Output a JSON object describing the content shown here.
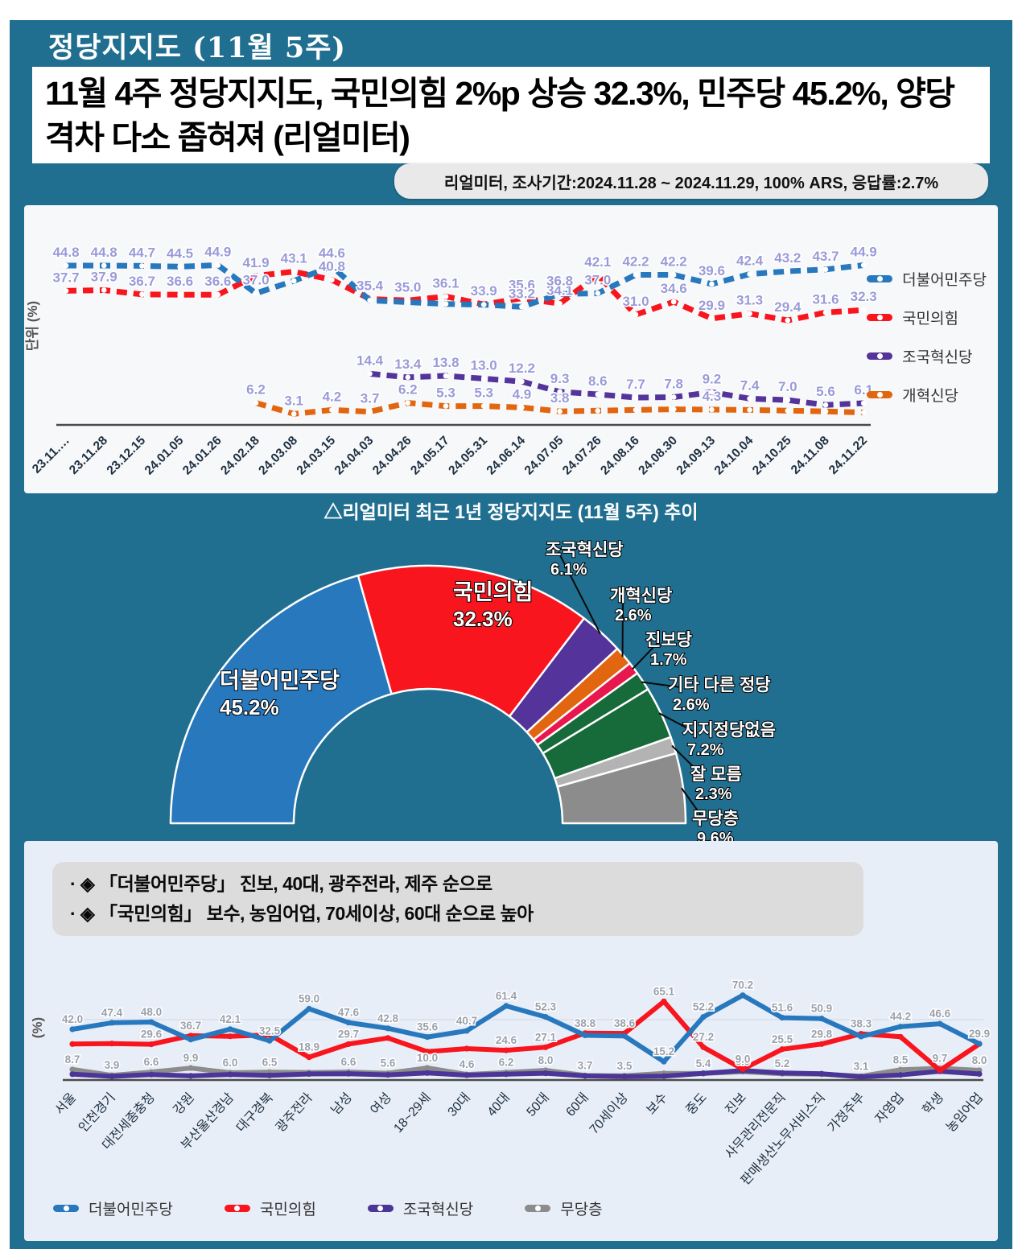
{
  "header": {
    "title": "정당지지도 (11월 5주)"
  },
  "headline": {
    "text": "11월 4주 정당지지도, 국민의힘 2%p 상승 32.3%, 민주당 45.2%, 양당 격차 다소 좁혀져 (리얼미터)"
  },
  "survey_note": {
    "text": "리얼미터, 조사기간:2024.11.28 ~ 2024.11.29, 100% ARS, 응답률:2.7%"
  },
  "trend_caption": {
    "text": "△리얼미터 최근 1년 정당지지도 (11월 5주) 추이"
  },
  "highlights": {
    "items": [
      "· ◈ 「더불어민주당」 진보, 40대, 광주전라, 제주 순으로",
      "· ◈ 「국민의힘」 보수, 농임어업, 70세이상, 60대 순으로 높아"
    ]
  },
  "colors": {
    "background_teal": "#216f90",
    "democratic_blue": "#2878be",
    "ppp_red": "#f8151d",
    "rebuilding_purple": "#54339b",
    "reform_orange": "#e2660f",
    "jinbo_crimson": "#e8174e",
    "other_green": "#176a3a",
    "dontknow_lightgray": "#b3b3b3",
    "none_gray": "#8c8c8c"
  },
  "chart_data": [
    {
      "id": "trend",
      "type": "line",
      "title": "리얼미터 최근 1년 정당지지도 추이",
      "ylabel": "단위 (%)",
      "ylim": [
        0,
        55
      ],
      "grid": false,
      "legend_position": "right",
      "x": [
        "23.11.…",
        "23.11.28",
        "23.12.15",
        "24.01.05",
        "24.01.26",
        "24.02.18",
        "24.03.08",
        "24.03.15",
        "24.04.03",
        "24.04.26",
        "24.05.17",
        "24.05.31",
        "24.06.14",
        "24.07.05",
        "24.07.26",
        "24.08.16",
        "24.08.30",
        "24.09.13",
        "24.10.04",
        "24.10.25",
        "24.11.08",
        "24.11.22"
      ],
      "series": [
        {
          "name": "더불어민주당",
          "color": "#2878be",
          "values": [
            44.8,
            44.8,
            44.7,
            44.5,
            44.9,
            37.0,
            40.5,
            44.6,
            35.0,
            34.5,
            34.0,
            33.8,
            33.2,
            36.8,
            37.0,
            42.2,
            42.2,
            39.6,
            42.4,
            43.2,
            43.7,
            44.9
          ],
          "labels": [
            "44.8",
            "44.8",
            "44.7",
            "44.5",
            "44.9",
            "37.0",
            "",
            "44.6",
            "",
            "",
            "",
            "",
            "33.2",
            "36.8",
            "37.0",
            "42.2",
            "42.2",
            "39.6",
            "42.4",
            "43.2",
            "43.7",
            "44.9"
          ]
        },
        {
          "name": "국민의힘",
          "color": "#f8151d",
          "values": [
            37.7,
            37.9,
            36.7,
            36.6,
            36.6,
            41.9,
            43.1,
            40.8,
            35.4,
            35.0,
            36.1,
            33.9,
            35.6,
            34.1,
            42.1,
            31.0,
            34.6,
            29.9,
            31.3,
            29.4,
            31.6,
            32.3
          ],
          "labels": [
            "37.7",
            "37.9",
            "36.7",
            "36.6",
            "36.6",
            "41.9",
            "43.1",
            "40.8",
            "35.4",
            "35.0",
            "36.1",
            "33.9",
            "35.6",
            "34.1",
            "42.1",
            "31.0",
            "34.6",
            "29.9",
            "31.3",
            "29.4",
            "31.6",
            "32.3"
          ]
        },
        {
          "name": "조국혁신당",
          "color": "#54339b",
          "values": [
            null,
            null,
            null,
            null,
            null,
            null,
            null,
            null,
            14.4,
            13.4,
            13.8,
            13.0,
            12.2,
            9.3,
            8.6,
            7.7,
            7.8,
            9.2,
            7.4,
            7.0,
            5.6,
            6.1
          ],
          "labels": [
            "",
            "",
            "",
            "",
            "",
            "",
            "",
            "",
            "14.4",
            "13.4",
            "13.8",
            "13.0",
            "12.2",
            "9.3",
            "8.6",
            "7.7",
            "7.8",
            "9.2",
            "7.4",
            "7.0",
            "5.6",
            "6.1"
          ]
        },
        {
          "name": "개혁신당",
          "color": "#e2660f",
          "values": [
            null,
            null,
            null,
            null,
            null,
            6.2,
            3.1,
            4.2,
            3.7,
            6.2,
            5.3,
            5.3,
            4.9,
            3.8,
            4.0,
            4.2,
            4.4,
            4.3,
            4.2,
            4.0,
            3.8,
            3.5
          ],
          "labels": [
            "",
            "",
            "",
            "",
            "",
            "6.2",
            "3.1",
            "4.2",
            "3.7",
            "6.2",
            "5.3",
            "5.3",
            "4.9",
            "3.8",
            "",
            "",
            "",
            "4.3",
            "",
            "",
            "",
            ""
          ]
        }
      ]
    },
    {
      "id": "donut",
      "type": "pie",
      "shape": "semicircle-donut",
      "segments": [
        {
          "label": "더불어민주당",
          "pct": "45.2%",
          "value": 45.2,
          "color": "#2878be"
        },
        {
          "label": "국민의힘",
          "pct": "32.3%",
          "value": 32.3,
          "color": "#f8151d"
        },
        {
          "label": "조국혁신당",
          "pct": "6.1%",
          "value": 6.1,
          "color": "#54339b"
        },
        {
          "label": "개혁신당",
          "pct": "2.6%",
          "value": 2.6,
          "color": "#e2660f"
        },
        {
          "label": "진보당",
          "pct": "1.7%",
          "value": 1.7,
          "color": "#e8174e"
        },
        {
          "label": "기타 다른 정당",
          "pct": "2.6%",
          "value": 2.6,
          "color": "#176a3a"
        },
        {
          "label": "지지정당없음",
          "pct": "7.2%",
          "value": 7.2,
          "color": "#176a3a"
        },
        {
          "label": "잘 모름",
          "pct": "2.3%",
          "value": 2.3,
          "color": "#b3b3b3"
        },
        {
          "label": "무당층",
          "pct": "9.6%",
          "value": 9.6,
          "color": "#8c8c8c"
        }
      ]
    },
    {
      "id": "demo",
      "type": "line",
      "ylabel": "(%)",
      "ylim": [
        0,
        75
      ],
      "grid": true,
      "legend_position": "bottom",
      "categories": [
        "서울",
        "인천경기",
        "대전세종충청",
        "강원",
        "부산울산경남",
        "대구경북",
        "광주전라",
        "남성",
        "여성",
        "18~29세",
        "30대",
        "40대",
        "50대",
        "60대",
        "70세이상",
        "보수",
        "중도",
        "진보",
        "사무관리전문직",
        "판매생산노무서비스직",
        "가정주부",
        "자영업",
        "학생",
        "농임어업"
      ],
      "series": [
        {
          "name": "더불어민주당",
          "color": "#2878be",
          "values": [
            42.0,
            47.4,
            48.0,
            33.5,
            42.1,
            32.5,
            59.0,
            47.6,
            42.8,
            35.6,
            40.7,
            61.4,
            52.3,
            37.0,
            36.5,
            15.2,
            52.2,
            70.2,
            51.6,
            50.9,
            36.0,
            44.2,
            46.6,
            30.0
          ],
          "labels": [
            "42.0",
            "47.4",
            "48.0",
            "",
            "42.1",
            "32.5",
            "59.0",
            "47.6",
            "42.8",
            "35.6",
            "40.7",
            "61.4",
            "52.3",
            "",
            "",
            "15.2",
            "52.2",
            "70.2",
            "51.6",
            "50.9",
            "",
            "44.2",
            "46.6",
            ""
          ]
        },
        {
          "name": "국민의힘",
          "color": "#f8151d",
          "values": [
            29.8,
            30.2,
            29.6,
            36.7,
            36.2,
            37.4,
            18.9,
            29.7,
            34.8,
            23.5,
            26.0,
            24.6,
            27.1,
            38.8,
            38.6,
            65.1,
            27.2,
            9.0,
            25.5,
            29.8,
            38.3,
            35.8,
            8.0,
            29.9
          ],
          "labels": [
            "",
            "",
            "29.6",
            "36.7",
            "",
            "",
            "18.9",
            "29.7",
            "",
            "",
            "",
            "24.6",
            "27.1",
            "38.8",
            "38.6",
            "65.1",
            "27.2",
            "9.0",
            "25.5",
            "29.8",
            "38.3",
            "",
            "",
            "29.9"
          ]
        },
        {
          "name": "조국혁신당",
          "color": "#4b3596",
          "values": [
            4.8,
            3.0,
            4.5,
            3.4,
            4.6,
            3.8,
            5.0,
            5.2,
            4.3,
            5.8,
            4.0,
            4.8,
            5.6,
            3.4,
            2.9,
            3.2,
            5.5,
            7.8,
            5.8,
            5.2,
            2.6,
            4.2,
            7.2,
            5.0
          ],
          "labels": [
            "",
            "",
            "",
            "",
            "",
            "",
            "",
            "",
            "",
            "",
            "",
            "",
            "",
            "",
            "",
            "",
            "",
            "",
            "",
            "",
            "",
            "",
            "",
            ""
          ]
        },
        {
          "name": "무당층",
          "color": "#8c8c8c",
          "values": [
            8.7,
            3.9,
            6.6,
            9.9,
            6.0,
            6.5,
            6.2,
            6.6,
            5.6,
            10.0,
            4.6,
            6.2,
            8.0,
            3.7,
            3.5,
            5.5,
            5.4,
            6.9,
            5.2,
            4.8,
            3.1,
            8.5,
            9.7,
            8.0
          ],
          "labels": [
            "8.7",
            "3.9",
            "6.6",
            "9.9",
            "6.0",
            "6.5",
            "",
            "6.6",
            "5.6",
            "10.0",
            "4.6",
            "6.2",
            "8.0",
            "3.7",
            "3.5",
            "",
            "5.4",
            "6.9",
            "5.2",
            "",
            "3.1",
            "8.5",
            "9.7",
            "8.0"
          ]
        }
      ]
    }
  ]
}
